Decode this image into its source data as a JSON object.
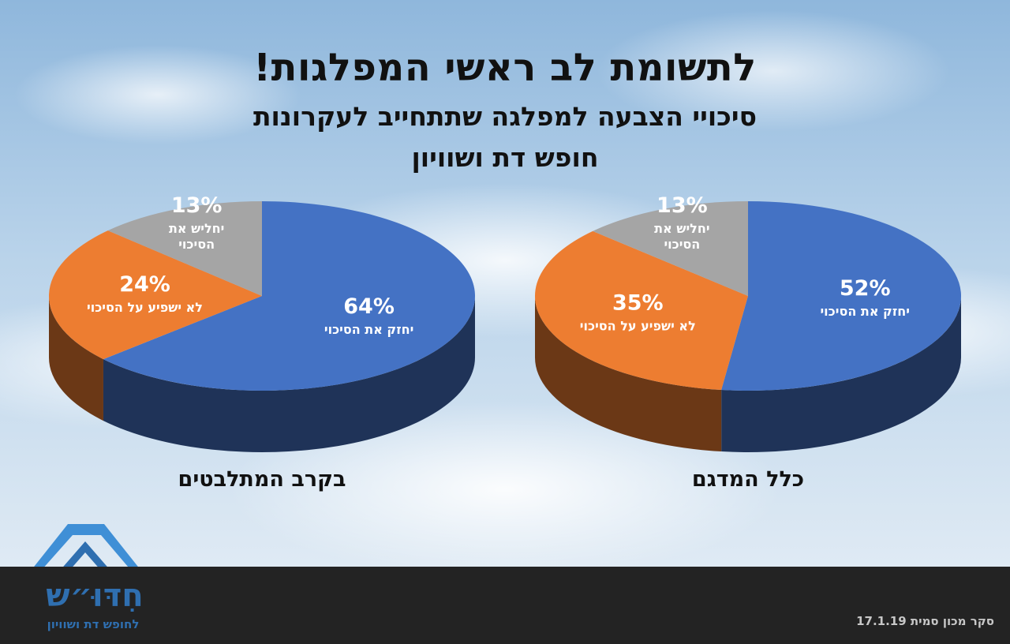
{
  "header": {
    "title": "לתשומת לב ראשי המפלגות!",
    "subtitle_line1": "סיכויי הצבעה למפלגה שתתחייב לעקרונות",
    "subtitle_line2": "חופש דת ושוויון"
  },
  "colors": {
    "increase": "#4472C4",
    "no_effect": "#ED7D31",
    "weaken": "#A5A5A5"
  },
  "chart_data": [
    {
      "type": "pie",
      "caption": "בקרב המתלבטים",
      "slices": [
        {
          "label_line1": "יחזק את הסיכוי",
          "label_line2": "",
          "value": 64,
          "value_label": "64%"
        },
        {
          "label_line1": "לא ישפיע על הסיכוי",
          "label_line2": "",
          "value": 24,
          "value_label": "24%"
        },
        {
          "label_line1": "יחליש את",
          "label_line2": "הסיכוי",
          "value": 13,
          "value_label": "13%"
        }
      ]
    },
    {
      "type": "pie",
      "caption": "כלל המדגם",
      "slices": [
        {
          "label_line1": "יחזק את הסיכוי",
          "label_line2": "",
          "value": 52,
          "value_label": "52%"
        },
        {
          "label_line1": "לא ישפיע על הסיכוי",
          "label_line2": "",
          "value": 35,
          "value_label": "35%"
        },
        {
          "label_line1": "יחליש את",
          "label_line2": "הסיכוי",
          "value": 13,
          "value_label": "13%"
        }
      ]
    }
  ],
  "footer": {
    "source": "סקר מכון סמית 17.1.19",
    "logo_name": "חִדּוּ״ש",
    "logo_tagline": "לחופש דת ושוויון"
  }
}
